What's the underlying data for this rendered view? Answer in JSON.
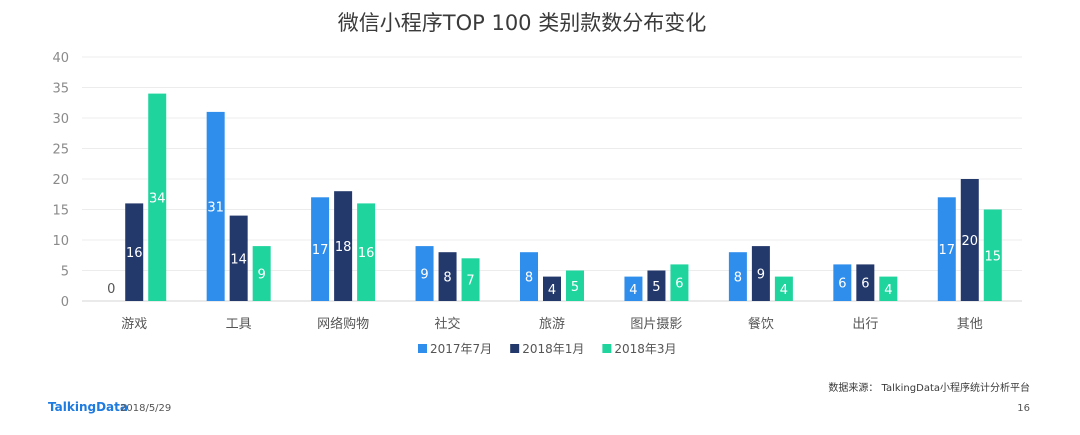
{
  "chart_data": {
    "type": "bar",
    "title": "微信小程序TOP 100 类别款数分布变化",
    "categories": [
      "游戏",
      "工具",
      "网络购物",
      "社交",
      "旅游",
      "图片摄影",
      "餐饮",
      "出行",
      "其他"
    ],
    "series": [
      {
        "name": "2017年7月",
        "color": "#2f8eec",
        "values": [
          0,
          31,
          17,
          9,
          8,
          4,
          8,
          6,
          17
        ]
      },
      {
        "name": "2018年1月",
        "color": "#24396b",
        "values": [
          16,
          14,
          18,
          8,
          4,
          5,
          9,
          6,
          20
        ]
      },
      {
        "name": "2018年3月",
        "color": "#20d49e",
        "values": [
          34,
          9,
          16,
          7,
          5,
          6,
          4,
          4,
          15
        ]
      }
    ],
    "ylim": [
      0,
      40
    ],
    "yticks": [
      0,
      5,
      10,
      15,
      20,
      25,
      30,
      35,
      40
    ],
    "grid": true,
    "legend": "bottom-center",
    "xlabel": "",
    "ylabel": ""
  },
  "footer": {
    "source": "数据来源： TalkingData小程序统计分析平台",
    "brand": "TalkingData",
    "date": "2018/5/29",
    "page": "16"
  }
}
